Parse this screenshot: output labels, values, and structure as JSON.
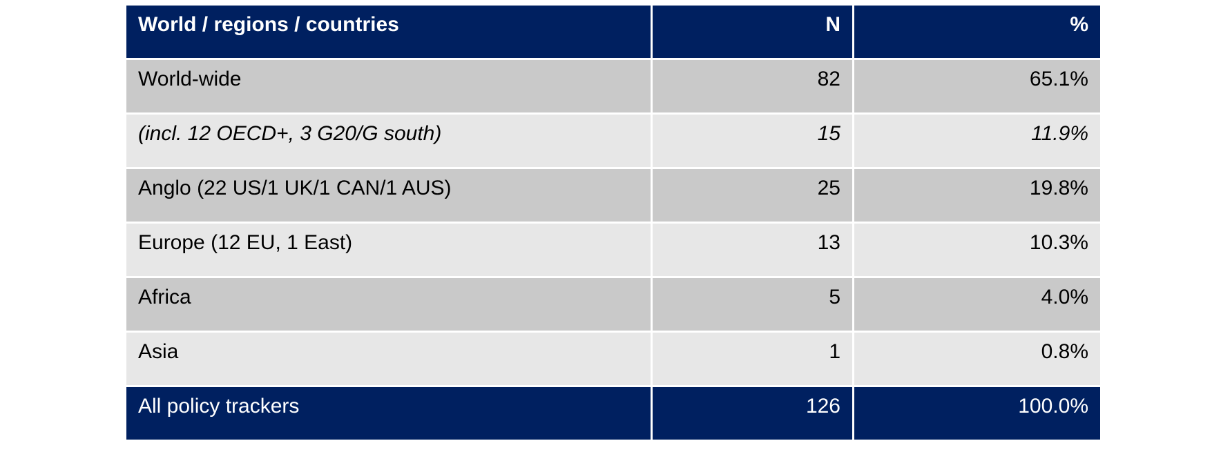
{
  "table": {
    "headers": [
      "World / regions / countries",
      "N",
      "%"
    ],
    "rows": [
      {
        "label": "World-wide",
        "n": "82",
        "pct": "65.1%"
      },
      {
        "label": "(incl. 12 OECD+, 3 G20/G south)",
        "n": "15",
        "pct": "11.9%"
      },
      {
        "label": "Anglo (22 US/1 UK/1 CAN/1 AUS)",
        "n": "25",
        "pct": "19.8%"
      },
      {
        "label": "Europe (12 EU, 1 East)",
        "n": "13",
        "pct": "10.3%"
      },
      {
        "label": "Africa",
        "n": "5",
        "pct": "4.0%"
      },
      {
        "label": "Asia",
        "n": "1",
        "pct": "0.8%"
      }
    ],
    "total": {
      "label": "All policy trackers",
      "n": "126",
      "pct": "100.0%"
    }
  },
  "colors": {
    "header_bg": "#002060",
    "row_dark": "#c9c9c9",
    "row_light": "#e7e7e7"
  }
}
